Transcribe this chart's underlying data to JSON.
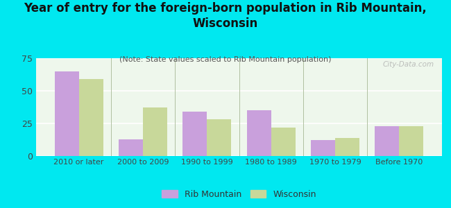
{
  "title": "Year of entry for the foreign-born population in Rib Mountain,\nWisconsin",
  "subtitle": "(Note: State values scaled to Rib Mountain population)",
  "categories": [
    "2010 or later",
    "2000 to 2009",
    "1990 to 1999",
    "1980 to 1989",
    "1970 to 1979",
    "Before 1970"
  ],
  "rib_mountain": [
    65,
    13,
    34,
    35,
    12,
    23
  ],
  "wisconsin": [
    59,
    37,
    28,
    22,
    14,
    23
  ],
  "rib_mountain_color": "#c9a0dc",
  "wisconsin_color": "#c8d89a",
  "background_color": "#00e8f0",
  "plot_bg_color": "#eef7ec",
  "ylim": [
    0,
    75
  ],
  "yticks": [
    0,
    25,
    50,
    75
  ],
  "bar_width": 0.38,
  "legend_labels": [
    "Rib Mountain",
    "Wisconsin"
  ],
  "watermark": "City-Data.com",
  "title_fontsize": 12,
  "subtitle_fontsize": 8,
  "tick_fontsize": 8
}
